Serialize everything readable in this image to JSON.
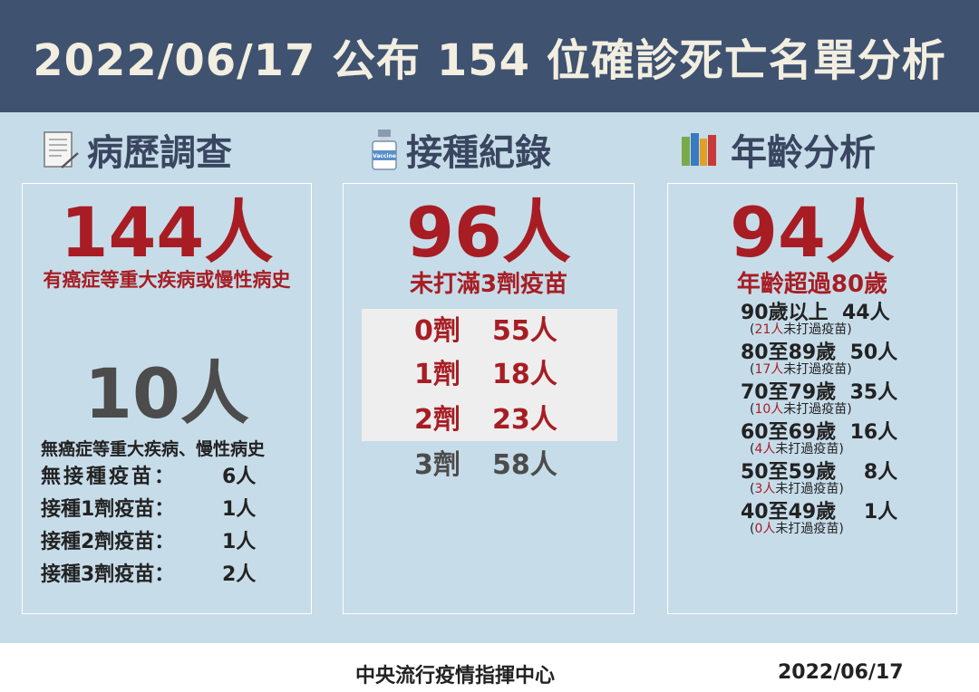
{
  "header": {
    "title": "2022/06/17 公布 154 位確診死亡名單分析"
  },
  "sections": {
    "history": {
      "title": "病歷調查",
      "icon": "document-icon",
      "main_count": "144人",
      "main_desc": "有癌症等重大疾病或慢性病史",
      "secondary_count": "10人",
      "secondary_desc": "無癌症等重大疾病、慢性病史",
      "breakdown": [
        {
          "label": "無接種疫苗：",
          "value": "6人"
        },
        {
          "label": "接種1劑疫苗：",
          "value": "1人"
        },
        {
          "label": "接種2劑疫苗：",
          "value": "1人"
        },
        {
          "label": "接種3劑疫苗：",
          "value": "2人"
        }
      ]
    },
    "vaccination": {
      "title": "接種紀錄",
      "icon": "vaccine-bottle-icon",
      "icon_text": "Vaccine",
      "main_count": "96人",
      "main_desc": "未打滿3劑疫苗",
      "doses": [
        {
          "label": "0劑",
          "value": "55人",
          "highlight": true
        },
        {
          "label": "1劑",
          "value": "18人",
          "highlight": true
        },
        {
          "label": "2劑",
          "value": "23人",
          "highlight": true
        },
        {
          "label": "3劑",
          "value": "58人",
          "highlight": false
        }
      ]
    },
    "age": {
      "title": "年齡分析",
      "icon": "books-icon",
      "main_count": "94人",
      "main_desc": "年齡超過80歲",
      "groups": [
        {
          "range": "90歲以上",
          "count": "44人",
          "unvax": "21人",
          "note_suffix": "未打過疫苗"
        },
        {
          "range": "80至89歲",
          "count": "50人",
          "unvax": "17人",
          "note_suffix": "未打過疫苗"
        },
        {
          "range": "70至79歲",
          "count": "35人",
          "unvax": "10人",
          "note_suffix": "未打過疫苗"
        },
        {
          "range": "60至69歲",
          "count": "16人",
          "unvax": "4人",
          "note_suffix": "未打過疫苗"
        },
        {
          "range": "50至59歲",
          "count": "8人",
          "unvax": "3人",
          "note_suffix": "未打過疫苗"
        },
        {
          "range": "40至49歲",
          "count": "1人",
          "unvax": "0人",
          "note_suffix": "未打過疫苗"
        }
      ]
    }
  },
  "footer": {
    "org": "中央流行疫情指揮中心",
    "date": "2022/06/17"
  },
  "colors": {
    "header_bg": "#3f5270",
    "accent_red": "#a71d23",
    "panel_bg": "#c7dce9"
  }
}
